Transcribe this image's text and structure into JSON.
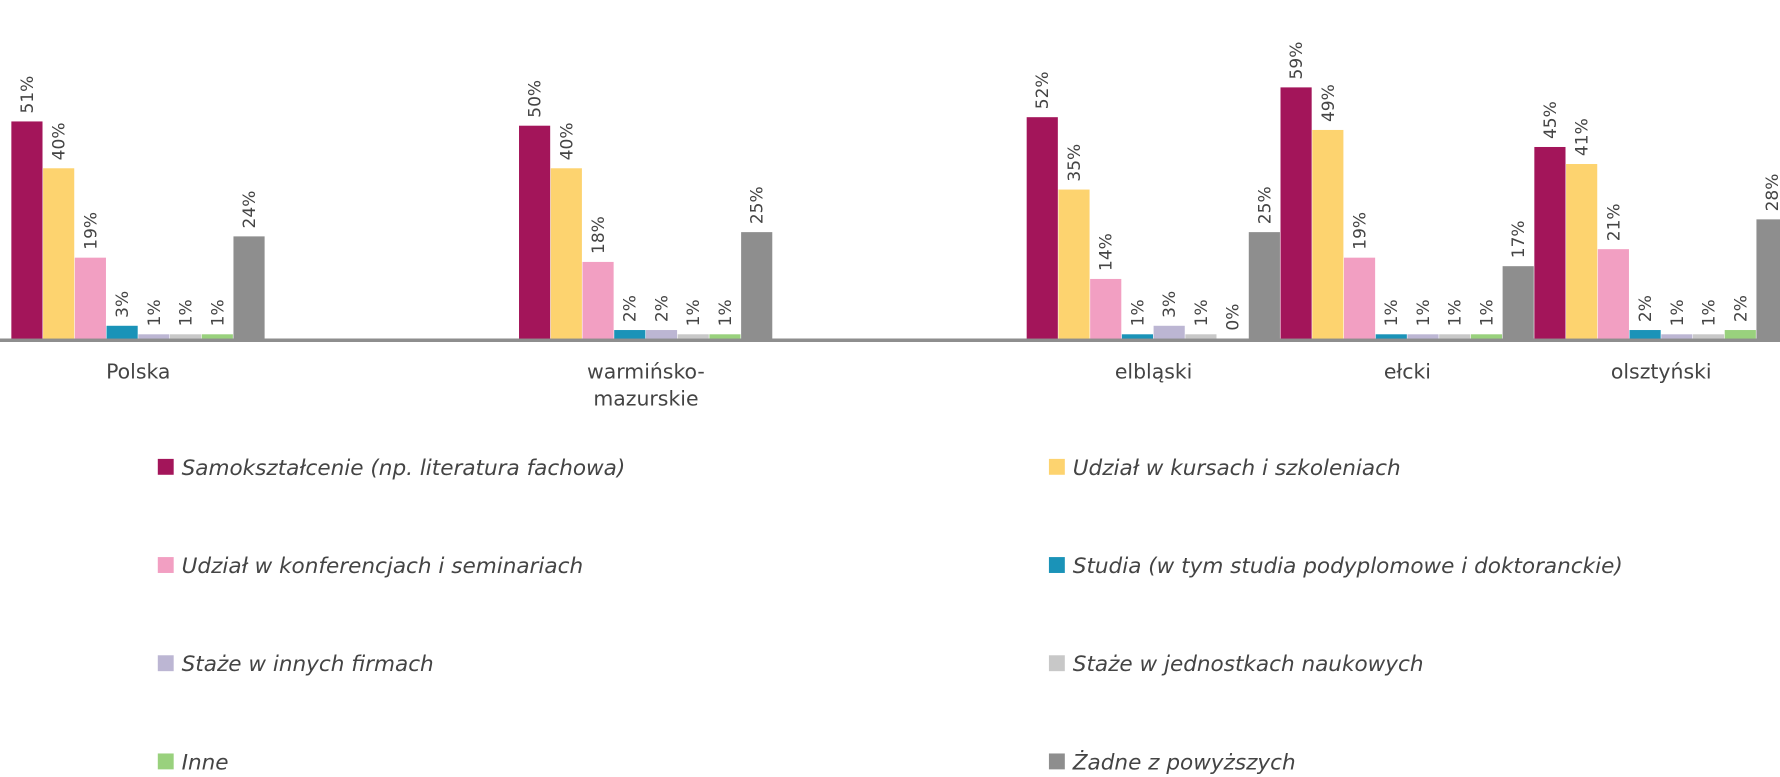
{
  "chart_data": {
    "type": "bar",
    "categories": [
      "Polska",
      null,
      "warmińsko-mazurskie",
      null,
      "elbląski",
      "ełcki",
      "olsztyński"
    ],
    "ylim": [
      0,
      80
    ],
    "series": [
      {
        "name": "Samokształcenie (np. literatura fachowa)",
        "color": "#a3155a",
        "values": [
          51,
          null,
          50,
          null,
          52,
          59,
          45
        ],
        "value_labels": [
          "51%",
          null,
          "50%",
          null,
          "52%",
          "59%",
          "45%"
        ]
      },
      {
        "name": "Udział w kursach i szkoleniach",
        "color": "#fdd36f",
        "values": [
          40,
          null,
          40,
          null,
          35,
          49,
          41
        ],
        "value_labels": [
          "40%",
          null,
          "40%",
          null,
          "35%",
          "49%",
          "41%"
        ]
      },
      {
        "name": "Udział w konferencjach i seminariach",
        "color": "#f29fc2",
        "values": [
          19,
          null,
          18,
          null,
          14,
          19,
          21
        ],
        "value_labels": [
          "19%",
          null,
          "18%",
          null,
          "14%",
          "19%",
          "21%"
        ]
      },
      {
        "name": "Studia (w tym studia podyplomowe i doktoranckie)",
        "color": "#1a93b8",
        "values": [
          3,
          null,
          2,
          null,
          1,
          1,
          2
        ],
        "value_labels": [
          "3%",
          null,
          "2%",
          null,
          "1%",
          "1%",
          "2%"
        ]
      },
      {
        "name": "Staże w innych firmach",
        "color": "#bcb6d3",
        "values": [
          1,
          null,
          2,
          null,
          3,
          1,
          1
        ],
        "value_labels": [
          "1%",
          null,
          "2%",
          null,
          "3%",
          "1%",
          "1%"
        ]
      },
      {
        "name": "Staże w jednostkach naukowych",
        "color": "#c8c8c8",
        "values": [
          1,
          null,
          1,
          null,
          1,
          1,
          1
        ],
        "value_labels": [
          "1%",
          null,
          "1%",
          null,
          "1%",
          "1%",
          "1%"
        ]
      },
      {
        "name": "Inne",
        "color": "#99d17d",
        "values": [
          1,
          null,
          1,
          null,
          0,
          1,
          2
        ],
        "value_labels": [
          "1%",
          null,
          "1%",
          null,
          "0%",
          "1%",
          "2%"
        ]
      },
      {
        "name": "Żadne z powyższych",
        "color": "#8e8e8e",
        "values": [
          24,
          null,
          25,
          null,
          25,
          17,
          28
        ],
        "value_labels": [
          "24%",
          null,
          "25%",
          null,
          "25%",
          "17%",
          "28%"
        ]
      }
    ]
  }
}
